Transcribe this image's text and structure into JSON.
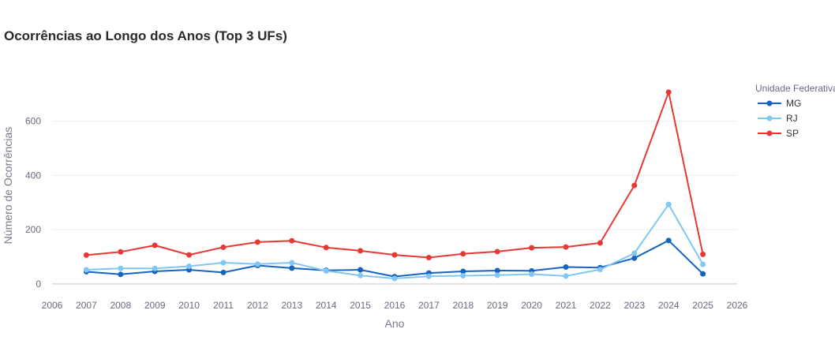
{
  "chart_data": {
    "type": "line",
    "title": "Ocorrências ao Longo dos Anos (Top 3 UFs)",
    "xlabel": "Ano",
    "ylabel": "Número de Ocorrências",
    "xlim": [
      2006,
      2026
    ],
    "ylim": [
      -15,
      785
    ],
    "x_ticks": [
      2006,
      2007,
      2008,
      2009,
      2010,
      2011,
      2012,
      2013,
      2014,
      2015,
      2016,
      2017,
      2018,
      2019,
      2020,
      2021,
      2022,
      2023,
      2024,
      2025,
      2026
    ],
    "y_ticks": [
      0,
      200,
      400,
      600
    ],
    "grid": true,
    "legend_title": "Unidade Federativa",
    "legend_position": "top-right",
    "x": [
      2007,
      2008,
      2009,
      2010,
      2011,
      2012,
      2013,
      2014,
      2015,
      2016,
      2017,
      2018,
      2019,
      2020,
      2021,
      2022,
      2023,
      2024,
      2025
    ],
    "series": [
      {
        "name": "MG",
        "color": "#1565c0",
        "values": [
          45,
          35,
          46,
          52,
          42,
          68,
          58,
          50,
          52,
          27,
          40,
          46,
          49,
          48,
          62,
          60,
          95,
          160,
          37
        ]
      },
      {
        "name": "RJ",
        "color": "#81c7f5",
        "values": [
          52,
          57,
          57,
          65,
          78,
          73,
          78,
          48,
          31,
          20,
          28,
          30,
          32,
          36,
          29,
          53,
          113,
          293,
          72
        ]
      },
      {
        "name": "SP",
        "color": "#e53935",
        "values": [
          106,
          118,
          142,
          107,
          135,
          154,
          159,
          134,
          122,
          107,
          97,
          111,
          119,
          133,
          136,
          151,
          363,
          707,
          109
        ]
      }
    ]
  }
}
